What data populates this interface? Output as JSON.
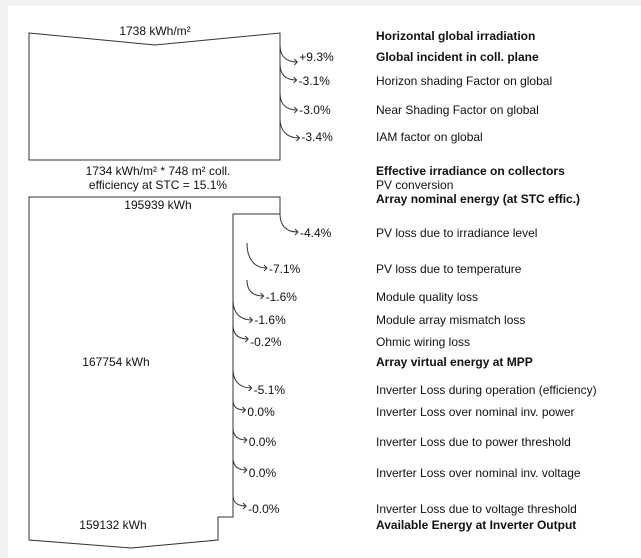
{
  "colors": {
    "background": "#f2f2f2",
    "frame": "#ffffff",
    "line": "#333333",
    "text": "#111111"
  },
  "irradiation": {
    "horizontal_value": "1738 kWh/m²",
    "collector_value": "1734 kWh/m² * 748 m² coll.",
    "stc_efficiency": "efficiency at STC = 15.1%"
  },
  "energy": {
    "array_nominal_value": "195939 kWh",
    "array_virtual_value": "167754 kWh",
    "inverter_output_value": "159132 kWh"
  },
  "steps": [
    {
      "pct": "+9.3%",
      "label": "Global incident in coll. plane",
      "bold": true
    },
    {
      "pct": "-3.1%",
      "label": "Horizon shading Factor on global",
      "bold": false
    },
    {
      "pct": "-3.0%",
      "label": "Near Shading Factor on global",
      "bold": false
    },
    {
      "pct": "-3.4%",
      "label": "IAM factor on global",
      "bold": false
    },
    {
      "pct": "-4.4%",
      "label": "PV loss due to irradiance level",
      "bold": false
    },
    {
      "pct": "-7.1%",
      "label": "PV loss due to temperature",
      "bold": false
    },
    {
      "pct": "-1.6%",
      "label": "Module quality loss",
      "bold": false
    },
    {
      "pct": "-1.6%",
      "label": "Module array mismatch loss",
      "bold": false
    },
    {
      "pct": "-0.2%",
      "label": "Ohmic wiring loss",
      "bold": false
    },
    {
      "pct": "-5.1%",
      "label": "Inverter Loss during operation (efficiency)",
      "bold": false
    },
    {
      "pct": "0.0%",
      "label": "Inverter Loss over nominal inv. power",
      "bold": false
    },
    {
      "pct": "0.0%",
      "label": "Inverter Loss due to power threshold",
      "bold": false
    },
    {
      "pct": "0.0%",
      "label": "Inverter Loss over nominal inv. voltage",
      "bold": false
    },
    {
      "pct": "-0.0%",
      "label": "Inverter Loss due to voltage threshold",
      "bold": false
    }
  ],
  "labels": {
    "horizontal": "Horizontal global irradiation",
    "effective": "Effective irradiance on collectors",
    "pv_conversion": "PV conversion",
    "array_nominal": "Array nominal energy (at STC effic.)",
    "array_virtual": "Array virtual energy at MPP",
    "available": "Available Energy at Inverter Output"
  }
}
